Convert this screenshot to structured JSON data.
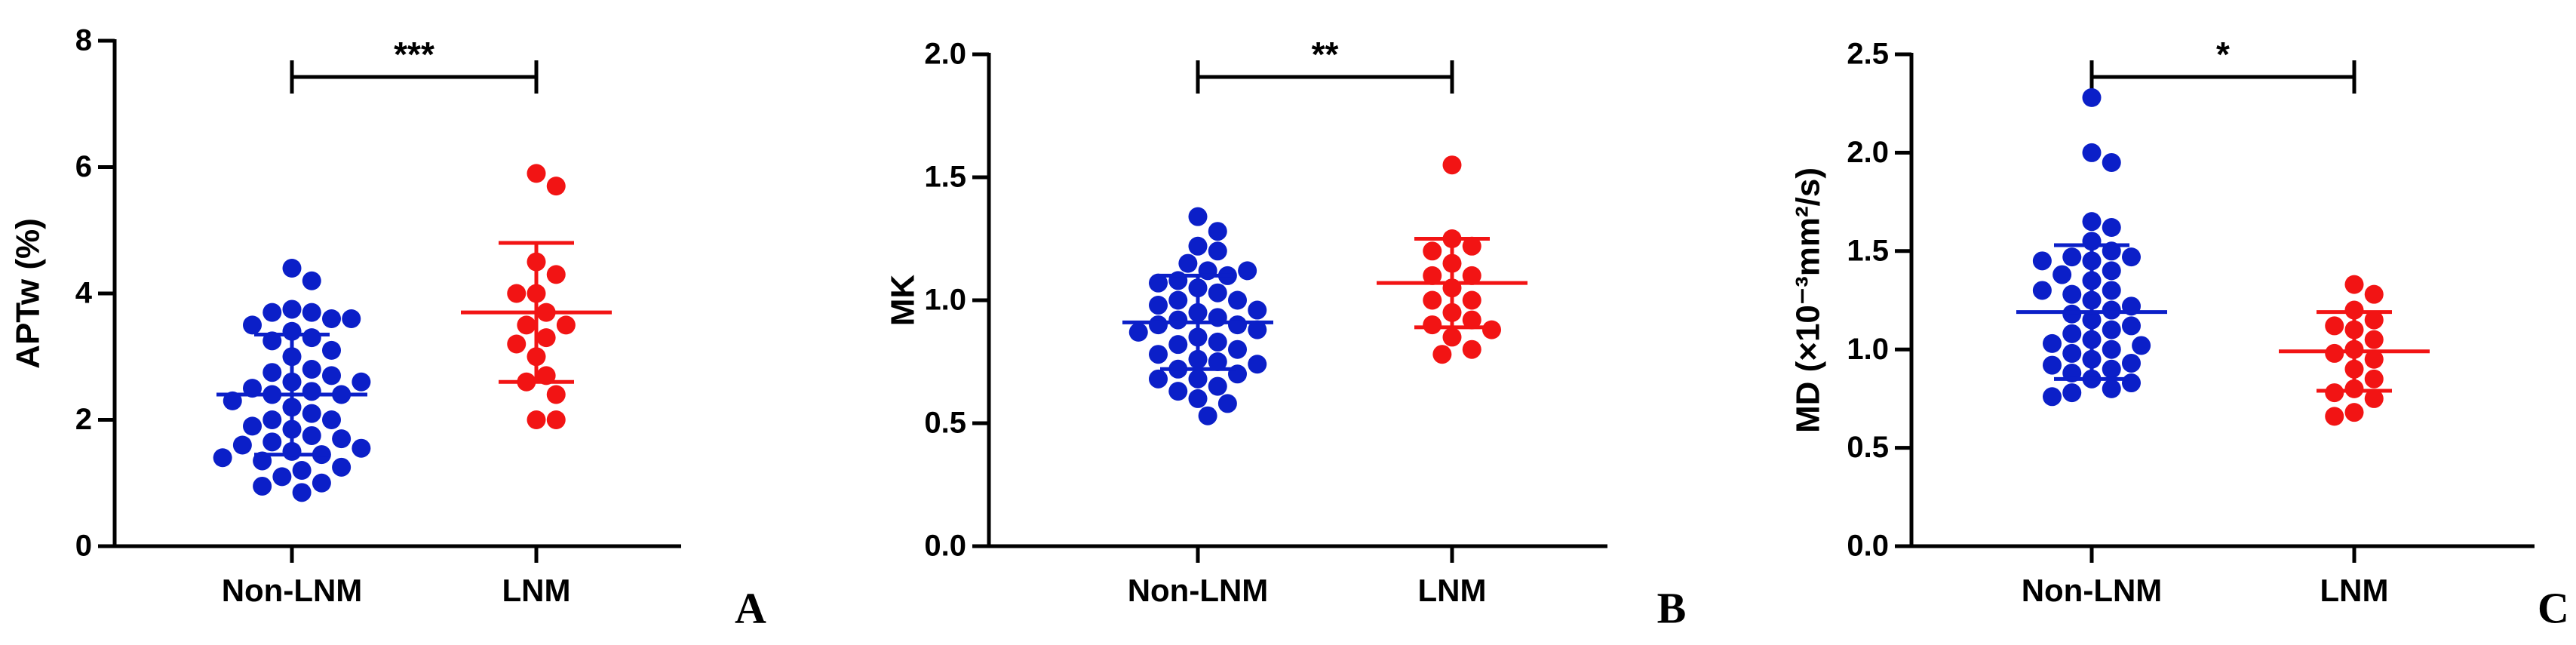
{
  "chart_data": [
    {
      "type": "scatter",
      "ylabel": "APTw (%)",
      "categories": [
        "Non-LNM",
        "LNM"
      ],
      "annotation": "***",
      "panel_label": "A",
      "ylim": [
        0,
        8
      ],
      "yticks": [
        0,
        2,
        4,
        6,
        8
      ],
      "series": [
        {
          "name": "Non-LNM",
          "color": "#0b1fc8",
          "mean": 2.4,
          "sd": 0.95,
          "values": [
            4.4,
            4.2,
            3.75,
            3.7,
            3.7,
            3.6,
            3.5,
            3.4,
            3.3,
            3.25,
            3.1,
            3.0,
            2.8,
            2.75,
            2.7,
            2.6,
            2.5,
            2.45,
            2.4,
            2.4,
            2.3,
            2.2,
            2.1,
            2.0,
            2.0,
            1.9,
            1.85,
            1.75,
            1.7,
            1.65,
            1.6,
            1.55,
            1.5,
            1.45,
            1.4,
            1.35,
            1.25,
            1.2,
            1.1,
            1.0,
            0.95,
            0.85,
            2.6,
            3.6
          ]
        },
        {
          "name": "LNM",
          "color": "#f21414",
          "mean": 3.7,
          "sd": 1.1,
          "values": [
            5.9,
            5.7,
            4.5,
            4.3,
            4.0,
            3.7,
            3.5,
            3.5,
            3.3,
            3.2,
            3.0,
            2.7,
            2.6,
            2.4,
            2.0,
            2.0,
            4.0
          ]
        }
      ]
    },
    {
      "type": "scatter",
      "ylabel": "MK",
      "categories": [
        "Non-LNM",
        "LNM"
      ],
      "annotation": "**",
      "panel_label": "B",
      "ylim": [
        0,
        2
      ],
      "yticks": [
        {
          "value": 0,
          "label": "0.0"
        },
        0.5,
        {
          "value": 1,
          "label": "1.0"
        },
        1.5,
        {
          "value": 2,
          "label": "2.0"
        }
      ],
      "series": [
        {
          "name": "Non-LNM",
          "color": "#0b1fc8",
          "mean": 0.91,
          "sd": 0.19,
          "values": [
            1.34,
            1.28,
            1.22,
            1.2,
            1.15,
            1.12,
            1.1,
            1.08,
            1.05,
            1.03,
            1.0,
            1.0,
            0.98,
            0.95,
            0.93,
            0.92,
            0.9,
            0.9,
            0.88,
            0.85,
            0.83,
            0.82,
            0.8,
            0.78,
            0.76,
            0.75,
            0.72,
            0.7,
            0.68,
            0.65,
            0.63,
            0.6,
            0.58,
            0.53,
            1.07,
            0.96,
            0.87,
            0.74,
            1.12,
            0.68
          ]
        },
        {
          "name": "LNM",
          "color": "#f21414",
          "mean": 1.07,
          "sd": 0.18,
          "values": [
            1.55,
            1.25,
            1.22,
            1.2,
            1.15,
            1.1,
            1.1,
            1.05,
            1.0,
            1.0,
            0.95,
            0.92,
            0.9,
            0.88,
            0.85,
            0.8,
            0.78
          ]
        }
      ]
    },
    {
      "type": "scatter",
      "ylabel": "MD (×10⁻³mm²/s)",
      "categories": [
        "Non-LNM",
        "LNM"
      ],
      "annotation": "*",
      "panel_label": "C",
      "ylim": [
        0,
        2.5
      ],
      "yticks": [
        {
          "value": 0,
          "label": "0.0"
        },
        0.5,
        {
          "value": 1,
          "label": "1.0"
        },
        1.5,
        {
          "value": 2,
          "label": "2.0"
        },
        2.5
      ],
      "series": [
        {
          "name": "Non-LNM",
          "color": "#0b1fc8",
          "mean": 1.19,
          "sd": 0.34,
          "values": [
            2.28,
            2.0,
            1.95,
            1.65,
            1.62,
            1.55,
            1.5,
            1.47,
            1.47,
            1.45,
            1.4,
            1.38,
            1.35,
            1.3,
            1.28,
            1.25,
            1.22,
            1.2,
            1.18,
            1.15,
            1.12,
            1.1,
            1.08,
            1.05,
            1.03,
            1.0,
            0.98,
            0.95,
            0.93,
            0.92,
            0.9,
            0.88,
            0.85,
            0.83,
            0.8,
            0.78,
            0.76,
            1.45,
            1.3,
            1.02
          ]
        },
        {
          "name": "LNM",
          "color": "#f21414",
          "mean": 0.99,
          "sd": 0.2,
          "values": [
            1.33,
            1.28,
            1.2,
            1.15,
            1.12,
            1.1,
            1.05,
            1.0,
            0.98,
            0.95,
            0.9,
            0.85,
            0.8,
            0.78,
            0.75,
            0.68,
            0.66
          ]
        }
      ]
    }
  ]
}
